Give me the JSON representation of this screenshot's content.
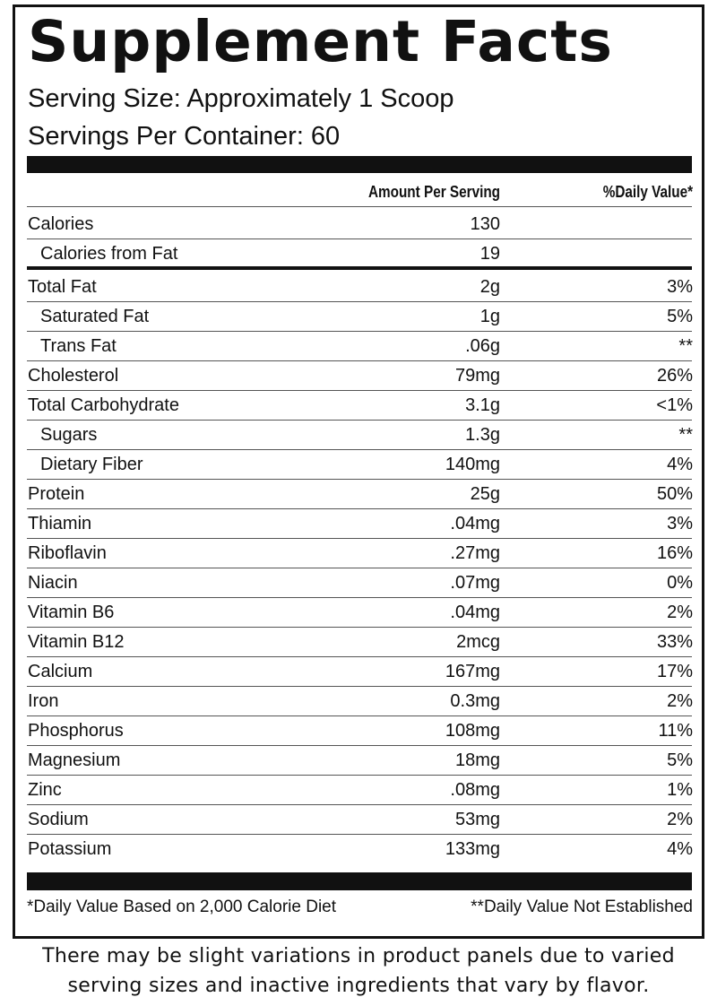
{
  "header": {
    "title": "Supplement Facts",
    "serving_size": "Serving Size: Approximately 1 Scoop",
    "servings_per_container": "Servings Per Container: 60"
  },
  "table": {
    "columns": [
      "Amount Per Serving",
      "%Daily Value*"
    ],
    "calorie_rows": [
      {
        "name": "Calories",
        "amount": "130"
      },
      {
        "name": "Calories from Fat",
        "amount": "19",
        "indented": true
      }
    ],
    "rows": [
      {
        "name": "Total Fat",
        "amount": "2g",
        "dv": "3%"
      },
      {
        "name": "Saturated Fat",
        "amount": "1g",
        "dv": "5%",
        "indented": true
      },
      {
        "name": "Trans Fat",
        "amount": ".06g",
        "dv": "**",
        "indented": true
      },
      {
        "name": "Cholesterol",
        "amount": "79mg",
        "dv": "26%"
      },
      {
        "name": "Total Carbohydrate",
        "amount": "3.1g",
        "dv": "<1%"
      },
      {
        "name": "Sugars",
        "amount": "1.3g",
        "dv": "**",
        "indented": true
      },
      {
        "name": "Dietary Fiber",
        "amount": "140mg",
        "dv": "4%",
        "indented": true
      },
      {
        "name": "Protein",
        "amount": "25g",
        "dv": "50%"
      },
      {
        "name": "Thiamin",
        "amount": ".04mg",
        "dv": "3%"
      },
      {
        "name": "Riboflavin",
        "amount": ".27mg",
        "dv": "16%"
      },
      {
        "name": "Niacin",
        "amount": ".07mg",
        "dv": "0%"
      },
      {
        "name": "Vitamin B6",
        "amount": ".04mg",
        "dv": "2%"
      },
      {
        "name": "Vitamin B12",
        "amount": "2mcg",
        "dv": "33%"
      },
      {
        "name": "Calcium",
        "amount": "167mg",
        "dv": "17%"
      },
      {
        "name": "Iron",
        "amount": "0.3mg",
        "dv": "2%"
      },
      {
        "name": "Phosphorus",
        "amount": "108mg",
        "dv": "11%"
      },
      {
        "name": "Magnesium",
        "amount": "18mg",
        "dv": "5%"
      },
      {
        "name": "Zinc",
        "amount": ".08mg",
        "dv": "1%"
      },
      {
        "name": "Sodium",
        "amount": "53mg",
        "dv": "2%"
      },
      {
        "name": "Potassium",
        "amount": "133mg",
        "dv": "4%"
      }
    ]
  },
  "footnotes": [
    "*Daily Value Based on 2,000 Calorie Diet",
    "**Daily Value Not Established"
  ],
  "disclaimer": [
    "There may be slight variations in product panels due to varied",
    "serving sizes and inactive ingredients that vary by flavor."
  ]
}
